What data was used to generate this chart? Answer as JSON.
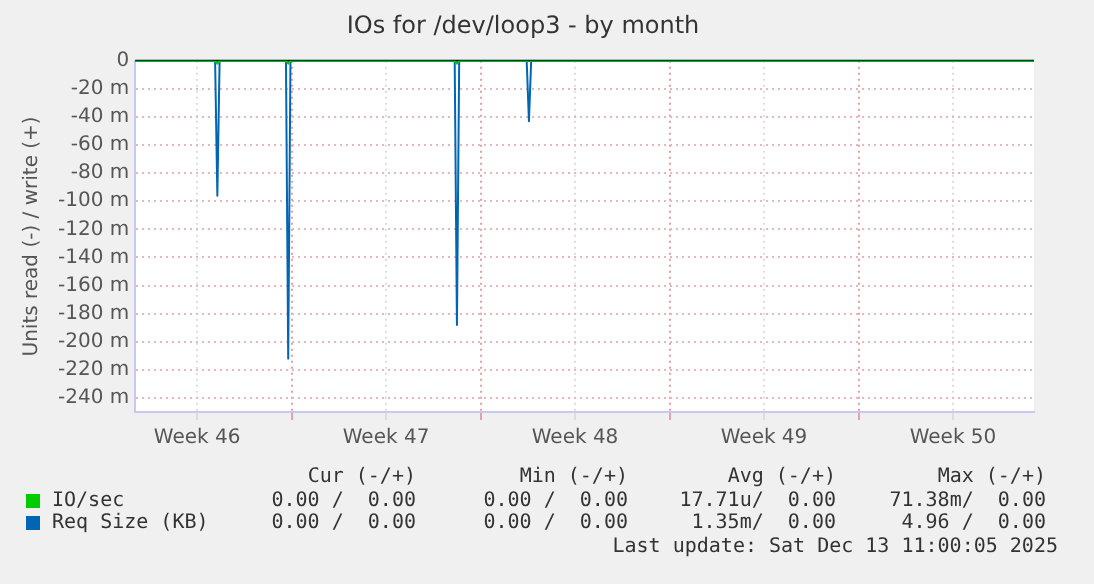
{
  "chart_data": {
    "type": "line",
    "title": "IOs for /dev/loop3 - by month",
    "ylabel": "Units read (-) / write (+)",
    "series": [
      {
        "name": "IO/sec",
        "color": "#00cc00",
        "x": [
          "2025-11-11T05:00",
          "2025-11-14T04:00",
          "2025-11-14T06:00",
          "2025-11-14T08:00",
          "2025-11-16T19:00",
          "2025-11-16T21:00",
          "2025-11-16T23:00",
          "2025-11-23T01:00",
          "2025-11-23T03:00",
          "2025-11-23T05:00",
          "2025-12-14T12:00"
        ],
        "values": [
          0,
          0,
          -2,
          0,
          0,
          -2,
          0,
          0,
          -2,
          0,
          0
        ]
      },
      {
        "name": "Req Size (KB)",
        "color": "#0066b3",
        "x": [
          "2025-11-11T05:00",
          "2025-11-14T04:00",
          "2025-11-14T06:00",
          "2025-11-14T08:00",
          "2025-11-16T19:00",
          "2025-11-16T21:00",
          "2025-11-16T23:00",
          "2025-11-23T01:00",
          "2025-11-23T03:00",
          "2025-11-23T05:00",
          "2025-11-25T17:00",
          "2025-11-25T19:00",
          "2025-11-25T21:00",
          "2025-12-14T12:00"
        ],
        "values": [
          0,
          0,
          -96,
          0,
          0,
          -212,
          0,
          0,
          -188,
          0,
          0,
          -43,
          0,
          0
        ]
      }
    ],
    "xlim": [
      "2025-11-11T05:00",
      "2025-12-14T12:00"
    ],
    "xticks": [
      {
        "value": "2025-11-13T12:00",
        "label": "Week 46"
      },
      {
        "value": "2025-11-17",
        "label": null
      },
      {
        "value": "2025-11-20T12:00",
        "label": "Week 47"
      },
      {
        "value": "2025-11-24",
        "label": null
      },
      {
        "value": "2025-11-27T12:00",
        "label": "Week 48"
      },
      {
        "value": "2025-12-01",
        "label": null
      },
      {
        "value": "2025-12-04T12:00",
        "label": "Week 49"
      },
      {
        "value": "2025-12-08",
        "label": null
      },
      {
        "value": "2025-12-11T12:00",
        "label": "Week 50"
      }
    ],
    "ylim": [
      -250,
      0
    ],
    "yticks": [
      0,
      {
        "value": -20,
        "label": "-20 m"
      },
      {
        "value": -40,
        "label": "-40 m"
      },
      {
        "value": -60,
        "label": "-60 m"
      },
      {
        "value": -80,
        "label": "-80 m"
      },
      {
        "value": -100,
        "label": "-100 m"
      },
      {
        "value": -120,
        "label": "-120 m"
      },
      {
        "value": -140,
        "label": "-140 m"
      },
      {
        "value": -160,
        "label": "-160 m"
      },
      {
        "value": -180,
        "label": "-180 m"
      },
      {
        "value": -200,
        "label": "-200 m"
      },
      {
        "value": -220,
        "label": "-220 m"
      },
      {
        "value": -240,
        "label": "-240 m"
      }
    ],
    "grid": true,
    "legend": "bottom",
    "marker": "none",
    "line_style": "solid",
    "annotations": [
      "Cur (-/+)",
      "Min (-/+)",
      "Avg (-/+)",
      "Max (-/+)",
      "0.00 /  0.00",
      "0.00 /  0.00",
      "17.71u/  0.00",
      "71.38m/  0.00",
      "0.00 /  0.00",
      "0.00 /  0.00",
      "1.35m/  0.00",
      "4.96 /  0.00",
      "Last update: Sat Dec 13 11:00:05 2025"
    ]
  }
}
